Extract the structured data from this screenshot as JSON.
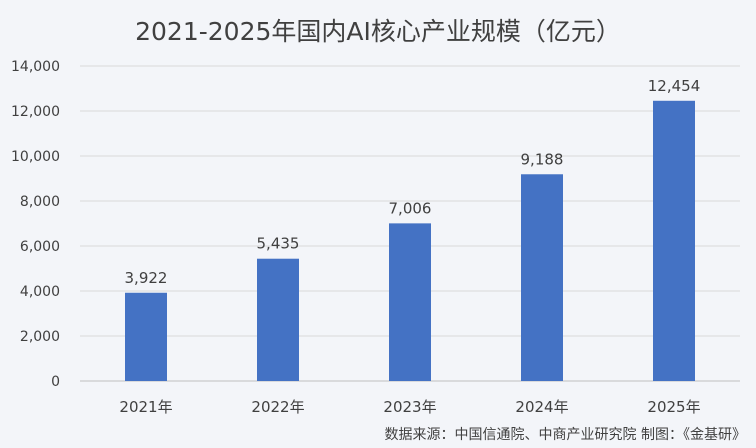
{
  "chart_data": {
    "type": "bar",
    "title": "2021-2025年国内AI核心产业规模（亿元）",
    "categories": [
      "2021年",
      "2022年",
      "2023年",
      "2024年",
      "2025年"
    ],
    "values": [
      3922,
      5435,
      7006,
      9188,
      12454
    ],
    "value_labels": [
      "3,922",
      "5,435",
      "7,006",
      "9,188",
      "12,454"
    ],
    "ylim": [
      0,
      14000
    ],
    "y_ticks": [
      0,
      2000,
      4000,
      6000,
      8000,
      10000,
      12000,
      14000
    ],
    "y_tick_labels": [
      "0",
      "2,000",
      "4,000",
      "6,000",
      "8,000",
      "10,000",
      "12,000",
      "14,000"
    ],
    "grid": true,
    "bar_color": "#4472c4",
    "grid_color": "#d9d9d9"
  },
  "source_note": "数据来源：中国信通院、中商产业研究院  制图：《金基研》"
}
